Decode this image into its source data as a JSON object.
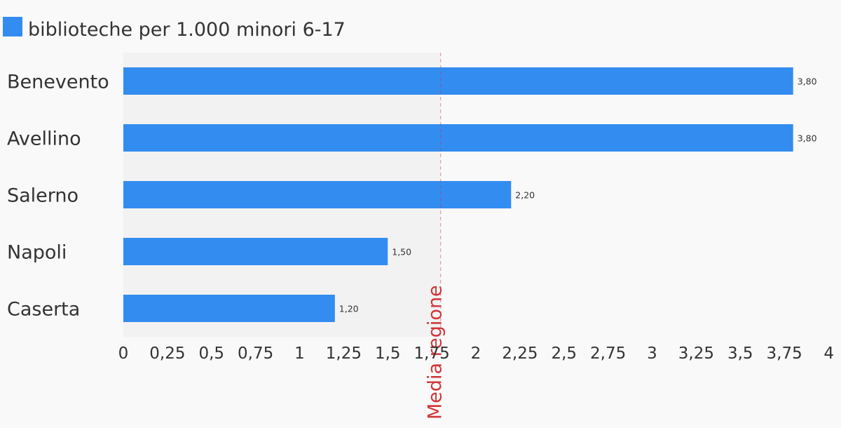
{
  "chart_data": {
    "type": "bar",
    "orientation": "horizontal",
    "title": "",
    "xlabel": "",
    "ylabel": "",
    "categories": [
      "Benevento",
      "Avellino",
      "Salerno",
      "Napoli",
      "Caserta"
    ],
    "series": [
      {
        "name": "biblioteche per 1.000 minori 6-17",
        "color": "#338cf0",
        "values": [
          3.8,
          3.8,
          2.2,
          1.5,
          1.2
        ],
        "labels": [
          "3,80",
          "3,80",
          "2,20",
          "1,50",
          "1,20"
        ]
      }
    ],
    "xlim": [
      0,
      4
    ],
    "xticks": [
      0,
      0.25,
      0.5,
      0.75,
      1,
      1.25,
      1.5,
      1.75,
      2,
      2.25,
      2.5,
      2.75,
      3,
      3.25,
      3.5,
      3.75,
      4
    ],
    "xtick_labels": [
      "0",
      "0,25",
      "0,5",
      "0,75",
      "1",
      "1,25",
      "1,5",
      "1,75",
      "2",
      "2,25",
      "2,5",
      "2,75",
      "3",
      "3,25",
      "3,5",
      "3,75",
      "4"
    ],
    "reference_line": {
      "label": "Media regione",
      "value": 1.8,
      "color": "#d13438",
      "style": "dashed"
    },
    "shaded_region": {
      "from": 0,
      "to": 1.8,
      "color": "#f2f2f2"
    },
    "legend": {
      "position": "top-left"
    },
    "grid": false
  }
}
